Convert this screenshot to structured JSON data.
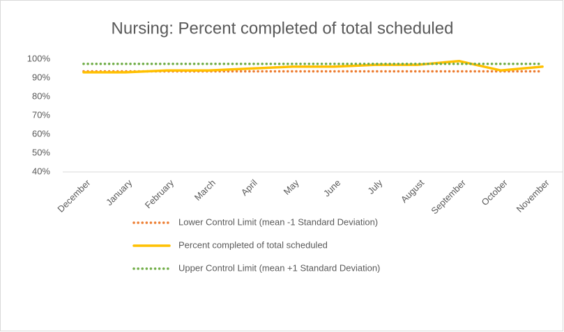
{
  "chart_data": {
    "type": "line",
    "title": "Nursing: Percent completed of total scheduled",
    "categories": [
      "December",
      "January",
      "February",
      "March",
      "April",
      "May",
      "June",
      "July",
      "August",
      "September",
      "October",
      "November"
    ],
    "series": [
      {
        "name": "Lower Control Limit (mean -1 Standard Deviation)",
        "color": "#ED7D31",
        "style": "dotted",
        "values": [
          93.5,
          93.5,
          93.5,
          93.5,
          93.5,
          93.5,
          93.5,
          93.5,
          93.5,
          93.5,
          93.5,
          93.5
        ]
      },
      {
        "name": "Percent completed of total scheduled",
        "color": "#FFC000",
        "style": "solid",
        "values": [
          93,
          93,
          94,
          94,
          95,
          96,
          96,
          97,
          97,
          99,
          94,
          96
        ]
      },
      {
        "name": "Upper Control Limit (mean +1 Standard Deviation)",
        "color": "#70AD47",
        "style": "dotted",
        "values": [
          97.5,
          97.5,
          97.5,
          97.5,
          97.5,
          97.5,
          97.5,
          97.5,
          97.5,
          97.5,
          97.5,
          97.5
        ]
      }
    ],
    "ylim": [
      40,
      100
    ],
    "yticks": [
      {
        "value": 40,
        "label": "40%"
      },
      {
        "value": 50,
        "label": "50%"
      },
      {
        "value": 60,
        "label": "60%"
      },
      {
        "value": 70,
        "label": "70%"
      },
      {
        "value": 80,
        "label": "80%"
      },
      {
        "value": 90,
        "label": "90%"
      },
      {
        "value": 100,
        "label": "100%"
      }
    ],
    "grid": false,
    "legend": "bottom"
  }
}
